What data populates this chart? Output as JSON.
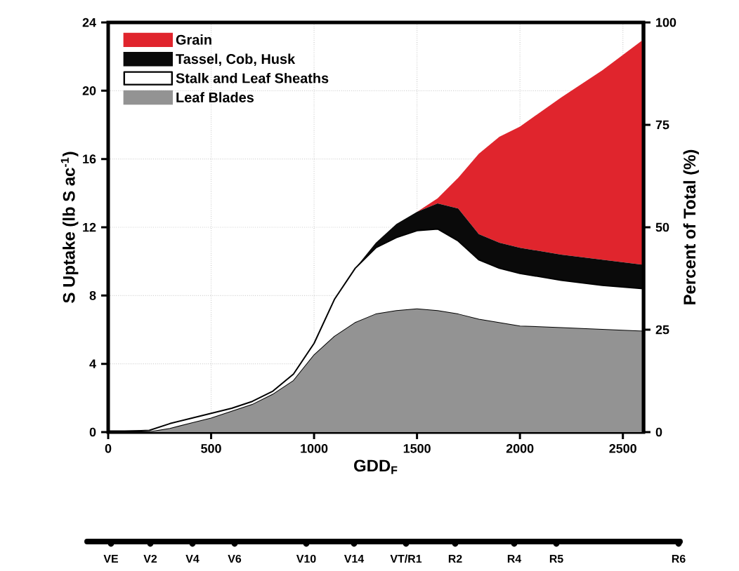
{
  "chart_data": {
    "type": "area",
    "stacked": true,
    "xlabel": "GDD$_{F}$",
    "ylabel": "S Uptake (lb S ac$^{-1}$)",
    "y2label": "Percent of Total (%)",
    "x": [
      0,
      200,
      300,
      400,
      500,
      600,
      700,
      800,
      900,
      1000,
      1100,
      1200,
      1300,
      1400,
      1500,
      1600,
      1700,
      1800,
      1900,
      2000,
      2200,
      2400,
      2600
    ],
    "series": [
      {
        "name": "Leaf Blades",
        "color": "#939393",
        "values": [
          0,
          0,
          0.2,
          0.5,
          0.8,
          1.2,
          1.6,
          2.2,
          3.0,
          4.5,
          5.6,
          6.4,
          6.9,
          7.1,
          7.2,
          7.1,
          6.9,
          6.6,
          6.4,
          6.2,
          6.1,
          6.0,
          5.9
        ]
      },
      {
        "name": "Stalk and Leaf Sheaths",
        "color": "#ffffff",
        "values": [
          0,
          0.1,
          0.3,
          0.3,
          0.3,
          0.2,
          0.2,
          0.2,
          0.4,
          0.7,
          2.2,
          3.2,
          3.9,
          4.3,
          4.6,
          4.8,
          4.3,
          3.5,
          3.2,
          3.1,
          2.8,
          2.6,
          2.5
        ]
      },
      {
        "name": "Tassel, Cob, Husk",
        "color": "#0a0a0a",
        "values": [
          0,
          0,
          0,
          0,
          0,
          0,
          0,
          0,
          0,
          0,
          0,
          0,
          0.3,
          0.8,
          1.1,
          1.5,
          1.9,
          1.5,
          1.5,
          1.5,
          1.5,
          1.5,
          1.4
        ]
      },
      {
        "name": "Grain",
        "color": "#e0252d",
        "values": [
          0,
          0,
          0,
          0,
          0,
          0,
          0,
          0,
          0,
          0,
          0,
          0,
          0,
          0,
          0,
          0.3,
          1.8,
          4.7,
          6.2,
          7.1,
          9.2,
          11.1,
          13.2
        ]
      }
    ],
    "xlim": [
      0,
      2600
    ],
    "ylim": [
      0,
      24
    ],
    "xticks": [
      0,
      500,
      1000,
      1500,
      2000,
      2500
    ],
    "yticks": [
      0,
      4,
      8,
      12,
      16,
      20,
      24
    ],
    "y2lim": [
      0,
      100
    ],
    "y2ticks": [
      0,
      25,
      50,
      75,
      100
    ],
    "annotations": [
      "VE",
      "V2",
      "V4",
      "V6",
      "V10",
      "V14",
      "VT/R1",
      "R2",
      "R4",
      "R5",
      "R6"
    ],
    "grid": true,
    "legend": "top left"
  }
}
